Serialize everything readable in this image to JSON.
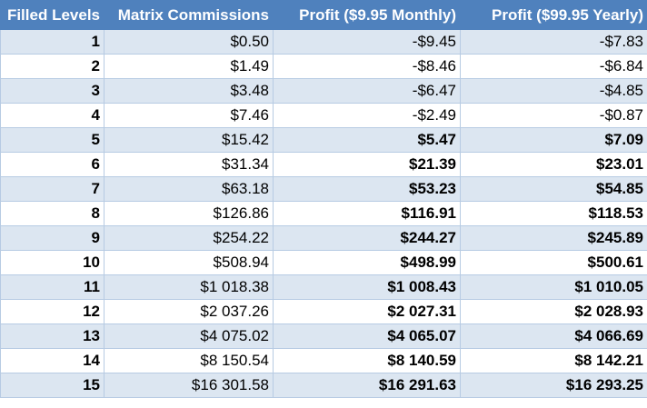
{
  "table": {
    "headers": [
      "Filled Levels",
      "Matrix Commissions",
      "Profit ($9.95 Monthly)",
      "Profit ($99.95 Yearly)"
    ],
    "rows": [
      {
        "level": "1",
        "commission": "$0.50",
        "monthly": "-$9.45",
        "yearly": "-$7.83",
        "positive": false
      },
      {
        "level": "2",
        "commission": "$1.49",
        "monthly": "-$8.46",
        "yearly": "-$6.84",
        "positive": false
      },
      {
        "level": "3",
        "commission": "$3.48",
        "monthly": "-$6.47",
        "yearly": "-$4.85",
        "positive": false
      },
      {
        "level": "4",
        "commission": "$7.46",
        "monthly": "-$2.49",
        "yearly": "-$0.87",
        "positive": false
      },
      {
        "level": "5",
        "commission": "$15.42",
        "monthly": "$5.47",
        "yearly": "$7.09",
        "positive": true
      },
      {
        "level": "6",
        "commission": "$31.34",
        "monthly": "$21.39",
        "yearly": "$23.01",
        "positive": true
      },
      {
        "level": "7",
        "commission": "$63.18",
        "monthly": "$53.23",
        "yearly": "$54.85",
        "positive": true
      },
      {
        "level": "8",
        "commission": "$126.86",
        "monthly": "$116.91",
        "yearly": "$118.53",
        "positive": true
      },
      {
        "level": "9",
        "commission": "$254.22",
        "monthly": "$244.27",
        "yearly": "$245.89",
        "positive": true
      },
      {
        "level": "10",
        "commission": "$508.94",
        "monthly": "$498.99",
        "yearly": "$500.61",
        "positive": true
      },
      {
        "level": "11",
        "commission": "$1 018.38",
        "monthly": "$1 008.43",
        "yearly": "$1 010.05",
        "positive": true
      },
      {
        "level": "12",
        "commission": "$2 037.26",
        "monthly": "$2 027.31",
        "yearly": "$2 028.93",
        "positive": true
      },
      {
        "level": "13",
        "commission": "$4 075.02",
        "monthly": "$4 065.07",
        "yearly": "$4 066.69",
        "positive": true
      },
      {
        "level": "14",
        "commission": "$8 150.54",
        "monthly": "$8 140.59",
        "yearly": "$8 142.21",
        "positive": true
      },
      {
        "level": "15",
        "commission": "$16 301.58",
        "monthly": "$16 291.63",
        "yearly": "$16 293.25",
        "positive": true
      }
    ]
  },
  "colors": {
    "header_background": "#4f81bd",
    "header_text": "#ffffff",
    "band_row": "#dce6f1",
    "plain_row": "#ffffff"
  }
}
